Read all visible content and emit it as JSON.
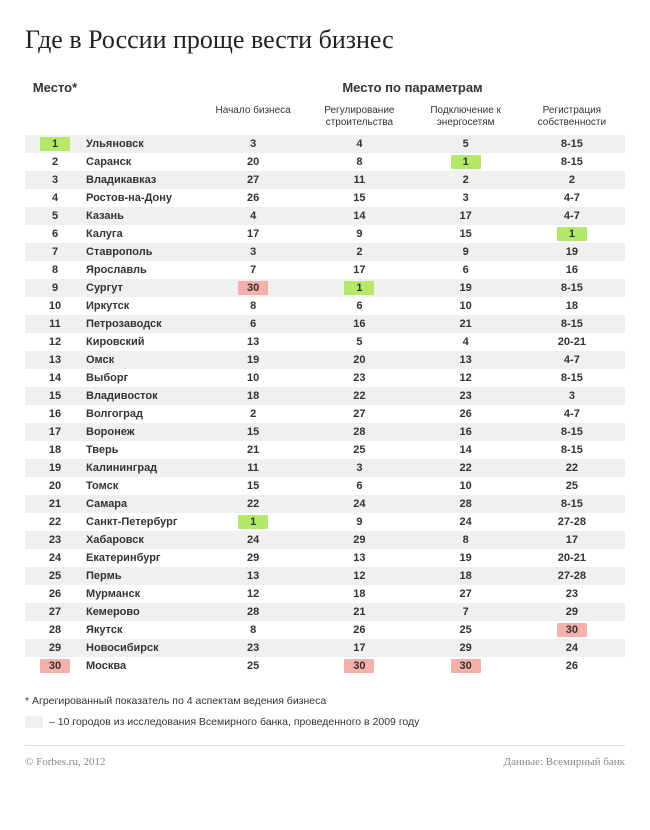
{
  "title": "Где в России проще вести бизнес",
  "headers": {
    "rank": "Место*",
    "params": "Место по параметрам",
    "sub": {
      "c1": "Начало бизнеса",
      "c2": "Регулирование строительства",
      "c3": "Подключение к энергосетям",
      "c4": "Регистрация собственности"
    }
  },
  "highlight_colors": {
    "best": "#b3e86a",
    "worst": "#f4b0aa",
    "row_shade": "#f0f0f0"
  },
  "rows": [
    {
      "rank": "1",
      "rank_hl": "best",
      "city": "Ульяновск",
      "v": [
        "3",
        "4",
        "5",
        "8-15"
      ],
      "hl": [
        "",
        "",
        "",
        ""
      ]
    },
    {
      "rank": "2",
      "rank_hl": "",
      "city": "Саранск",
      "v": [
        "20",
        "8",
        "1",
        "8-15"
      ],
      "hl": [
        "",
        "",
        "best",
        ""
      ]
    },
    {
      "rank": "3",
      "rank_hl": "",
      "city": "Владикавказ",
      "v": [
        "27",
        "11",
        "2",
        "2"
      ],
      "hl": [
        "",
        "",
        "",
        ""
      ]
    },
    {
      "rank": "4",
      "rank_hl": "",
      "city": "Ростов-на-Дону",
      "v": [
        "26",
        "15",
        "3",
        "4-7"
      ],
      "hl": [
        "",
        "",
        "",
        ""
      ]
    },
    {
      "rank": "5",
      "rank_hl": "",
      "city": "Казань",
      "v": [
        "4",
        "14",
        "17",
        "4-7"
      ],
      "hl": [
        "",
        "",
        "",
        ""
      ]
    },
    {
      "rank": "6",
      "rank_hl": "",
      "city": "Калуга",
      "v": [
        "17",
        "9",
        "15",
        "1"
      ],
      "hl": [
        "",
        "",
        "",
        "best"
      ]
    },
    {
      "rank": "7",
      "rank_hl": "",
      "city": "Ставрополь",
      "v": [
        "3",
        "2",
        "9",
        "19"
      ],
      "hl": [
        "",
        "",
        "",
        ""
      ]
    },
    {
      "rank": "8",
      "rank_hl": "",
      "city": "Ярославль",
      "v": [
        "7",
        "17",
        "6",
        "16"
      ],
      "hl": [
        "",
        "",
        "",
        ""
      ]
    },
    {
      "rank": "9",
      "rank_hl": "",
      "city": "Сургут",
      "v": [
        "30",
        "1",
        "19",
        "8-15"
      ],
      "hl": [
        "worst",
        "best",
        "",
        ""
      ]
    },
    {
      "rank": "10",
      "rank_hl": "",
      "city": "Иркутск",
      "v": [
        "8",
        "6",
        "10",
        "18"
      ],
      "hl": [
        "",
        "",
        "",
        ""
      ]
    },
    {
      "rank": "11",
      "rank_hl": "",
      "city": "Петрозаводск",
      "v": [
        "6",
        "16",
        "21",
        "8-15"
      ],
      "hl": [
        "",
        "",
        "",
        ""
      ]
    },
    {
      "rank": "12",
      "rank_hl": "",
      "city": "Кировский",
      "v": [
        "13",
        "5",
        "4",
        "20-21"
      ],
      "hl": [
        "",
        "",
        "",
        ""
      ]
    },
    {
      "rank": "13",
      "rank_hl": "",
      "city": "Омск",
      "v": [
        "19",
        "20",
        "13",
        "4-7"
      ],
      "hl": [
        "",
        "",
        "",
        ""
      ]
    },
    {
      "rank": "14",
      "rank_hl": "",
      "city": "Выборг",
      "v": [
        "10",
        "23",
        "12",
        "8-15"
      ],
      "hl": [
        "",
        "",
        "",
        ""
      ]
    },
    {
      "rank": "15",
      "rank_hl": "",
      "city": "Владивосток",
      "v": [
        "18",
        "22",
        "23",
        "3"
      ],
      "hl": [
        "",
        "",
        "",
        ""
      ]
    },
    {
      "rank": "16",
      "rank_hl": "",
      "city": "Волгоград",
      "v": [
        "2",
        "27",
        "26",
        "4-7"
      ],
      "hl": [
        "",
        "",
        "",
        ""
      ]
    },
    {
      "rank": "17",
      "rank_hl": "",
      "city": "Воронеж",
      "v": [
        "15",
        "28",
        "16",
        "8-15"
      ],
      "hl": [
        "",
        "",
        "",
        ""
      ]
    },
    {
      "rank": "18",
      "rank_hl": "",
      "city": "Тверь",
      "v": [
        "21",
        "25",
        "14",
        "8-15"
      ],
      "hl": [
        "",
        "",
        "",
        ""
      ]
    },
    {
      "rank": "19",
      "rank_hl": "",
      "city": "Калининград",
      "v": [
        "11",
        "3",
        "22",
        "22"
      ],
      "hl": [
        "",
        "",
        "",
        ""
      ]
    },
    {
      "rank": "20",
      "rank_hl": "",
      "city": "Томск",
      "v": [
        "15",
        "6",
        "10",
        "25"
      ],
      "hl": [
        "",
        "",
        "",
        ""
      ]
    },
    {
      "rank": "21",
      "rank_hl": "",
      "city": "Самара",
      "v": [
        "22",
        "24",
        "28",
        "8-15"
      ],
      "hl": [
        "",
        "",
        "",
        ""
      ]
    },
    {
      "rank": "22",
      "rank_hl": "",
      "city": "Санкт-Петербург",
      "v": [
        "1",
        "9",
        "24",
        "27-28"
      ],
      "hl": [
        "best",
        "",
        "",
        ""
      ]
    },
    {
      "rank": "23",
      "rank_hl": "",
      "city": "Хабаровск",
      "v": [
        "24",
        "29",
        "8",
        "17"
      ],
      "hl": [
        "",
        "",
        "",
        ""
      ]
    },
    {
      "rank": "24",
      "rank_hl": "",
      "city": "Екатеринбург",
      "v": [
        "29",
        "13",
        "19",
        "20-21"
      ],
      "hl": [
        "",
        "",
        "",
        ""
      ]
    },
    {
      "rank": "25",
      "rank_hl": "",
      "city": "Пермь",
      "v": [
        "13",
        "12",
        "18",
        "27-28"
      ],
      "hl": [
        "",
        "",
        "",
        ""
      ]
    },
    {
      "rank": "26",
      "rank_hl": "",
      "city": "Мурманск",
      "v": [
        "12",
        "18",
        "27",
        "23"
      ],
      "hl": [
        "",
        "",
        "",
        ""
      ]
    },
    {
      "rank": "27",
      "rank_hl": "",
      "city": "Кемерово",
      "v": [
        "28",
        "21",
        "7",
        "29"
      ],
      "hl": [
        "",
        "",
        "",
        ""
      ]
    },
    {
      "rank": "28",
      "rank_hl": "",
      "city": "Якутск",
      "v": [
        "8",
        "26",
        "25",
        "30"
      ],
      "hl": [
        "",
        "",
        "",
        "worst"
      ]
    },
    {
      "rank": "29",
      "rank_hl": "",
      "city": "Новосибирск",
      "v": [
        "23",
        "17",
        "29",
        "24"
      ],
      "hl": [
        "",
        "",
        "",
        ""
      ]
    },
    {
      "rank": "30",
      "rank_hl": "worst",
      "city": "Москва",
      "v": [
        "25",
        "30",
        "30",
        "26"
      ],
      "hl": [
        "",
        "worst",
        "worst",
        ""
      ]
    }
  ],
  "footnote": "* Агрегированный показатель по 4 аспектам ведения бизнеса",
  "legend_text": "– 10 городов из исследования Всемирного банка, проведенного в 2009 году",
  "credit_left": "© Forbes.ru, 2012",
  "credit_right": "Данные: Всемирный банк"
}
